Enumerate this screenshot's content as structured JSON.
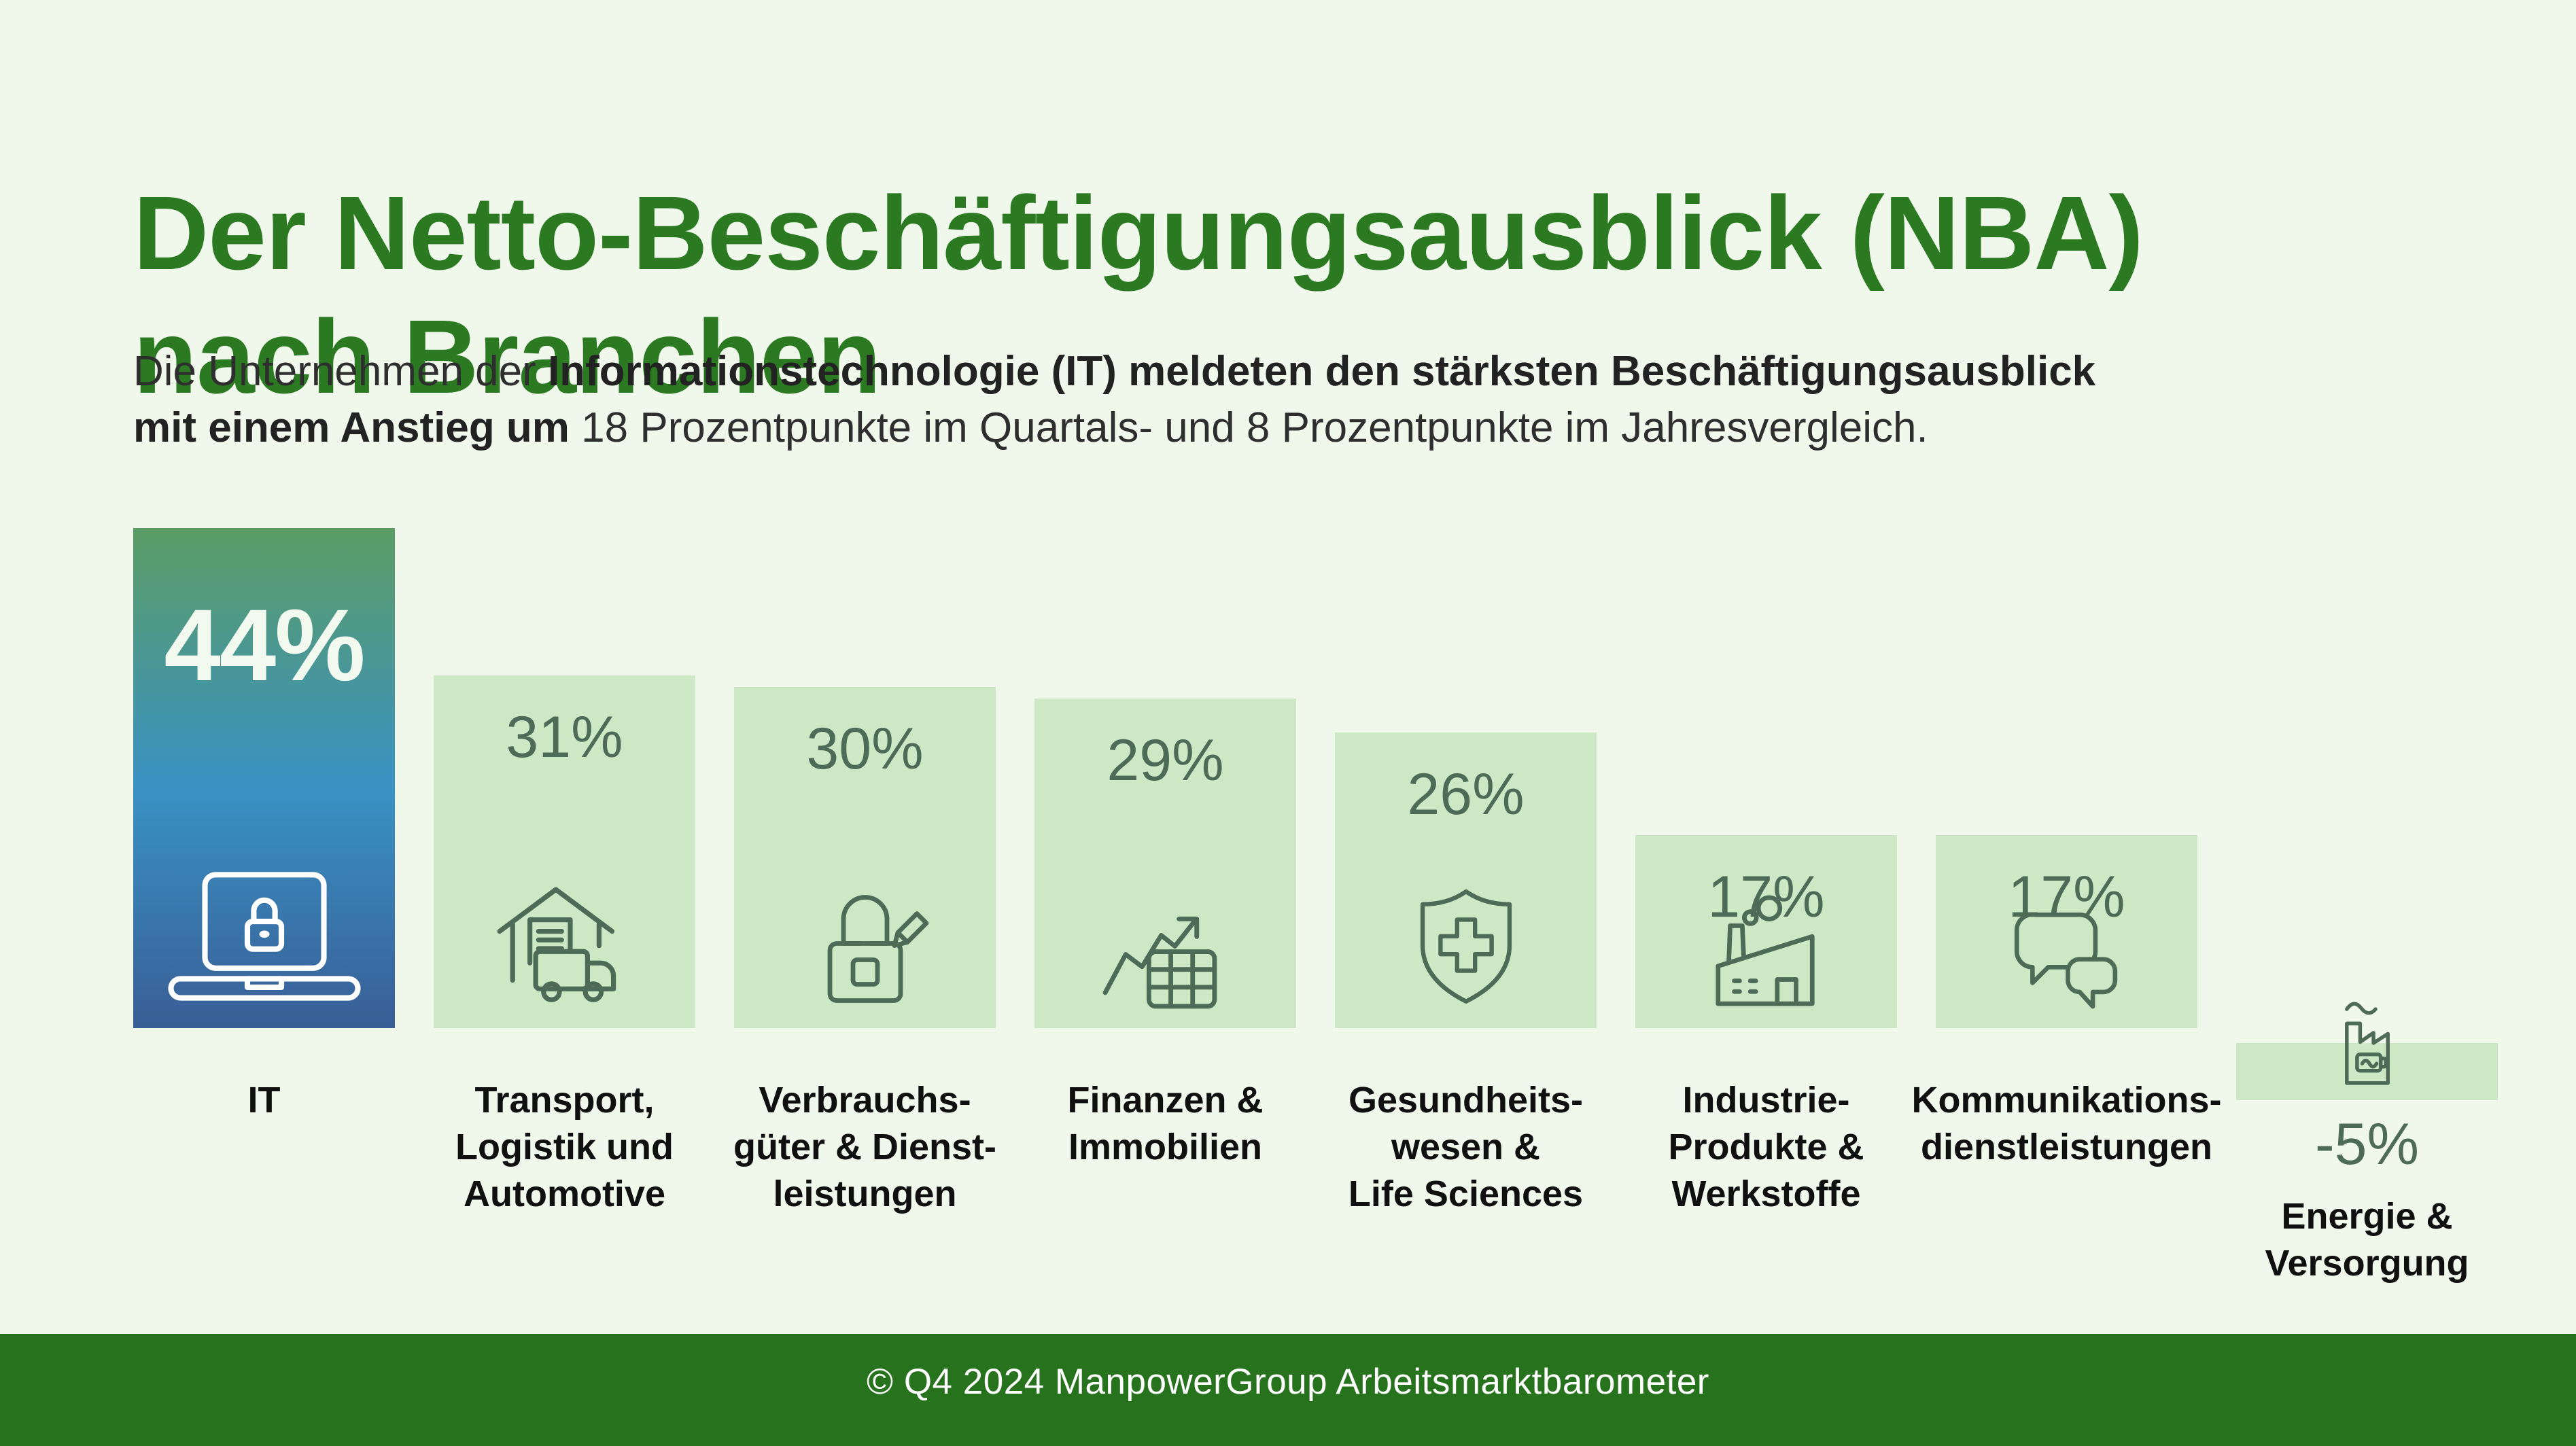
{
  "header": {
    "title_line1": "Der Netto-Beschäftigungsausblick (NBA)",
    "title_line2": "nach Branchen",
    "subtitle": {
      "part1": "Die Unternehmen der ",
      "part2_bold": "Informationstechnologie (IT) meldeten den stärksten Beschäftigungsausblick",
      "part3_bold": "mit einem Anstieg um ",
      "part4": "18 Prozentpunkte im Quartals- und 8 Prozentpunkte im Jahresvergleich."
    }
  },
  "chart_data": {
    "type": "bar",
    "title": "Der Netto-Beschäftigungsausblick (NBA) nach Branchen",
    "categories": [
      "IT",
      "Transport, Logistik und Automotive",
      "Verbrauchsgüter & Dienstleistungen",
      "Finanzen & Immobilien",
      "Gesundheitswesen & Life Sciences",
      "Industrie-Produkte & Werkstoffe",
      "Kommunikationsdienstleistungen",
      "Energie & Versorgung"
    ],
    "values": [
      44,
      31,
      30,
      29,
      26,
      17,
      17,
      -5
    ],
    "unit": "%",
    "ylim": [
      -5,
      44
    ],
    "grid": false,
    "legend": "none",
    "highlight_category": "IT"
  },
  "bars": [
    {
      "id": "it",
      "value": 44,
      "value_label": "44%",
      "label_lines": [
        "IT"
      ],
      "icon": "laptop-lock-icon",
      "variant": "highlight"
    },
    {
      "id": "transport-logistik-automotive",
      "value": 31,
      "value_label": "31%",
      "label_lines": [
        "Transport,",
        "Logistik und",
        "Automotive"
      ],
      "icon": "warehouse-truck-icon",
      "variant": "light"
    },
    {
      "id": "verbrauchsgueter-dienstleistungen",
      "value": 30,
      "value_label": "30%",
      "label_lines": [
        "Verbrauchs-",
        "güter & Dienst-",
        "leistungen"
      ],
      "icon": "shopping-bag-icon",
      "variant": "light"
    },
    {
      "id": "finanzen-immobilien",
      "value": 29,
      "value_label": "29%",
      "label_lines": [
        "Finanzen &",
        "Immobilien"
      ],
      "icon": "growth-chart-icon",
      "variant": "light"
    },
    {
      "id": "gesundheitswesen-life-sciences",
      "value": 26,
      "value_label": "26%",
      "label_lines": [
        "Gesundheits-",
        "wesen &",
        "Life Sciences"
      ],
      "icon": "health-shield-icon",
      "variant": "light"
    },
    {
      "id": "industrie-produkte-werkstoffe",
      "value": 17,
      "value_label": "17%",
      "label_lines": [
        "Industrie-",
        "Produkte &",
        "Werkstoffe"
      ],
      "icon": "factory-icon",
      "variant": "light"
    },
    {
      "id": "kommunikationsdienstleistungen",
      "value": 17,
      "value_label": "17%",
      "label_lines": [
        "Kommunikations-",
        "dienstleistungen"
      ],
      "icon": "speech-bubbles-icon",
      "variant": "light"
    },
    {
      "id": "energie-versorgung",
      "value": -5,
      "value_label": "-5%",
      "label_lines": [
        "Energie &",
        "Versorgung"
      ],
      "icon": "energy-factory-icon",
      "variant": "light"
    }
  ],
  "footer": {
    "text": "© Q4 2024 ManpowerGroup Arbeitsmarktbarometer"
  },
  "colors": {
    "background": "#f0f8ec",
    "title_green": "#2b7a22",
    "footer_green": "#27731d",
    "bar_light": "#cce8c5",
    "accent_text": "#4d6b57",
    "gradient_top": "#5b9c64",
    "gradient_mid": "#3992c4",
    "gradient_bottom": "#395e96"
  }
}
